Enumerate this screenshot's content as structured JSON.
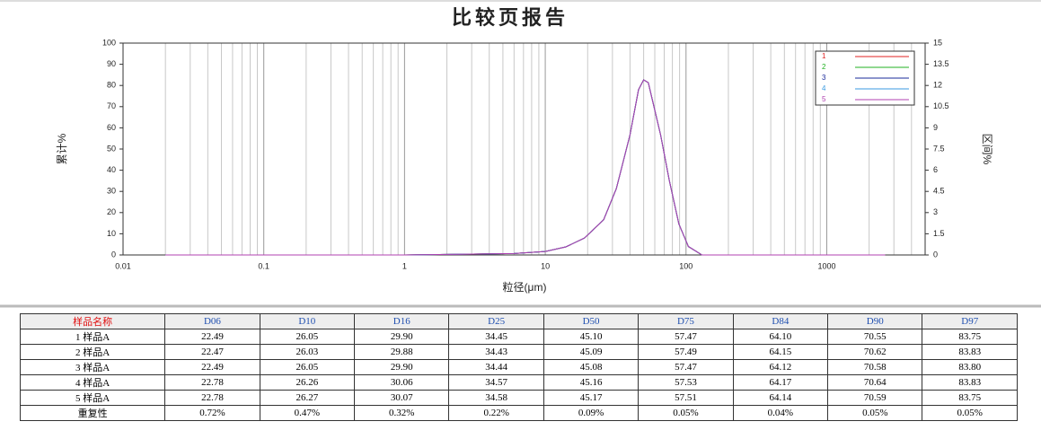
{
  "chart_data": {
    "type": "line",
    "title": "比较页报告",
    "x_label": "粒径(μm)",
    "y_label": "累计%",
    "y2_label": "区间%",
    "log_x": true,
    "x_grid": true,
    "minor_grid": true,
    "legend": "top-right",
    "xlim": [
      0.01,
      5000
    ],
    "xticks": [
      0.01,
      0.1,
      1,
      10,
      100,
      1000
    ],
    "ylim": [
      0,
      100
    ],
    "yticks": [
      0,
      10,
      20,
      30,
      40,
      50,
      60,
      70,
      80,
      90,
      100
    ],
    "y2lim": [
      0,
      15
    ],
    "y2ticks": [
      0,
      1.5,
      3,
      4.5,
      6,
      7.5,
      9,
      10.5,
      12,
      13.5,
      15
    ],
    "x": [
      0.02,
      1,
      6,
      10,
      14,
      19,
      26,
      32,
      40,
      46,
      50,
      54,
      66,
      76,
      89,
      104,
      130,
      2600
    ],
    "series": [
      {
        "name": "1",
        "color": "#e02020",
        "axis": "y2",
        "values": [
          0,
          0,
          0.1,
          0.25,
          0.57,
          1.2,
          2.5,
          4.7,
          8.5,
          11.7,
          12.4,
          12.2,
          8.5,
          5.3,
          2.2,
          0.6,
          0,
          0
        ]
      },
      {
        "name": "2",
        "color": "#20b020",
        "axis": "y2",
        "values": [
          0,
          0,
          0.1,
          0.25,
          0.57,
          1.2,
          2.5,
          4.7,
          8.5,
          11.7,
          12.4,
          12.2,
          8.5,
          5.3,
          2.2,
          0.6,
          0,
          0
        ]
      },
      {
        "name": "3",
        "color": "#1a2a9a",
        "axis": "y2",
        "values": [
          0,
          0,
          0.1,
          0.25,
          0.57,
          1.2,
          2.5,
          4.7,
          8.5,
          11.7,
          12.4,
          12.2,
          8.5,
          5.3,
          2.2,
          0.6,
          0,
          0
        ]
      },
      {
        "name": "4",
        "color": "#3a9ae0",
        "axis": "y2",
        "values": [
          0,
          0,
          0.1,
          0.25,
          0.57,
          1.2,
          2.5,
          4.7,
          8.5,
          11.7,
          12.4,
          12.2,
          8.5,
          5.3,
          2.2,
          0.6,
          0,
          0
        ]
      },
      {
        "name": "5",
        "color": "#b040b0",
        "axis": "y2",
        "values": [
          0,
          0,
          0.1,
          0.25,
          0.57,
          1.2,
          2.5,
          4.7,
          8.5,
          11.7,
          12.4,
          12.2,
          8.5,
          5.3,
          2.2,
          0.6,
          0,
          0
        ]
      }
    ]
  },
  "table": {
    "header": [
      "样品名称",
      "D06",
      "D10",
      "D16",
      "D25",
      "D50",
      "D75",
      "D84",
      "D90",
      "D97"
    ],
    "rows": [
      [
        "1 样品A",
        "22.49",
        "26.05",
        "29.90",
        "34.45",
        "45.10",
        "57.47",
        "64.10",
        "70.55",
        "83.75"
      ],
      [
        "2 样品A",
        "22.47",
        "26.03",
        "29.88",
        "34.43",
        "45.09",
        "57.49",
        "64.15",
        "70.62",
        "83.83"
      ],
      [
        "3 样品A",
        "22.49",
        "26.05",
        "29.90",
        "34.44",
        "45.08",
        "57.47",
        "64.12",
        "70.58",
        "83.80"
      ],
      [
        "4 样品A",
        "22.78",
        "26.26",
        "30.06",
        "34.57",
        "45.16",
        "57.53",
        "64.17",
        "70.64",
        "83.83"
      ],
      [
        "5 样品A",
        "22.78",
        "26.27",
        "30.07",
        "34.58",
        "45.17",
        "57.51",
        "64.14",
        "70.59",
        "83.75"
      ],
      [
        "重复性",
        "0.72%",
        "0.47%",
        "0.32%",
        "0.22%",
        "0.09%",
        "0.05%",
        "0.04%",
        "0.05%",
        "0.05%"
      ]
    ]
  }
}
